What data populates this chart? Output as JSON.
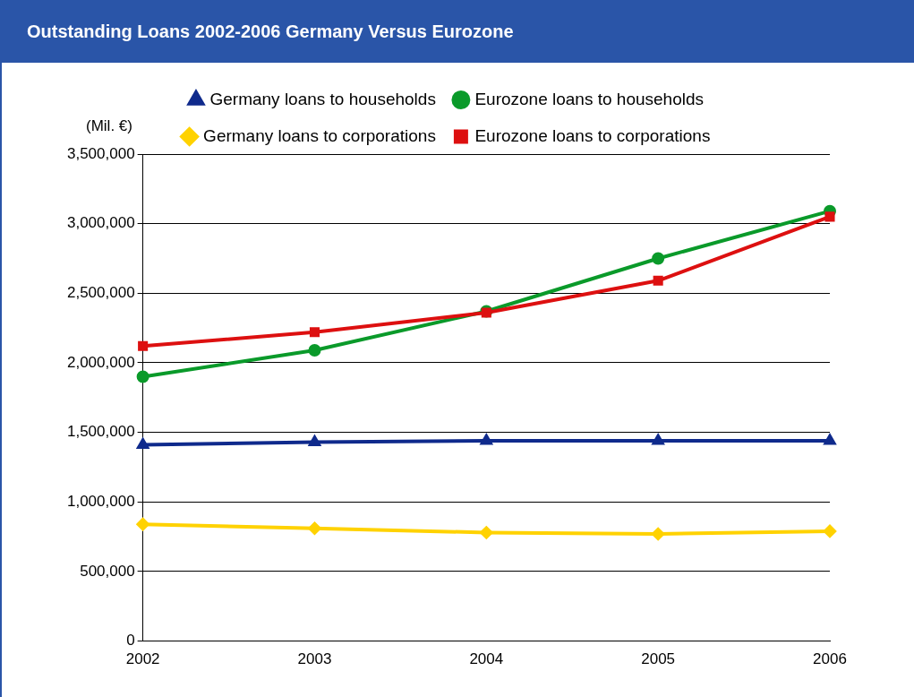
{
  "chart_data": {
    "type": "line",
    "title": "Outstanding Loans 2002-2006 Germany Versus Eurozone",
    "ylabel": "(Mil. €)",
    "categories": [
      "2002",
      "2003",
      "2004",
      "2005",
      "2006"
    ],
    "series": [
      {
        "name": "Germany loans to households",
        "color": "#0f2a8c",
        "marker": "triangle",
        "values": [
          1410000,
          1430000,
          1440000,
          1440000,
          1440000
        ]
      },
      {
        "name": "Eurozone loans to households",
        "color": "#0a9a2a",
        "marker": "circle",
        "values": [
          1900000,
          2090000,
          2370000,
          2750000,
          3090000
        ]
      },
      {
        "name": "Germany loans to corporations",
        "color": "#ffd200",
        "marker": "diamond",
        "values": [
          840000,
          810000,
          780000,
          770000,
          790000
        ]
      },
      {
        "name": "Eurozone loans to corporations",
        "color": "#dd1010",
        "marker": "square",
        "values": [
          2120000,
          2220000,
          2360000,
          2590000,
          3050000
        ]
      }
    ],
    "ylim": [
      0,
      3500000
    ],
    "yticks": [
      0,
      {
        "value": 500000,
        "label": "500,000"
      },
      {
        "value": 1000000,
        "label": "1,000,000"
      },
      {
        "value": 1500000,
        "label": "1,500,000"
      },
      {
        "value": 2000000,
        "label": "2,000,000"
      },
      {
        "value": 2500000,
        "label": "2,500,000"
      },
      {
        "value": 3000000,
        "label": "3,000,000"
      },
      {
        "value": 3500000,
        "label": "3,500,000"
      }
    ],
    "grid": "y",
    "legend": "top",
    "line_style": "solid"
  }
}
